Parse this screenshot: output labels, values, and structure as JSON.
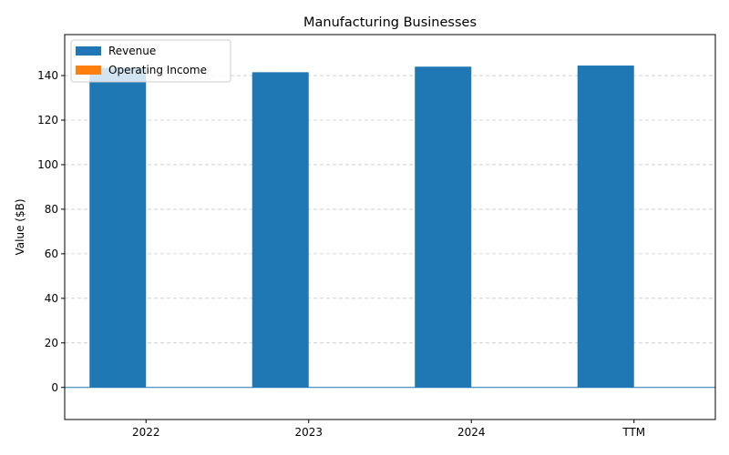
{
  "chart_data": {
    "type": "bar",
    "title": "Manufacturing Businesses",
    "xlabel": "",
    "ylabel": "Value ($B)",
    "categories": [
      "2022",
      "2023",
      "2024",
      "TTM"
    ],
    "series": [
      {
        "name": "Revenue",
        "color": "#1f77b4",
        "values": [
          143.5,
          141.5,
          144.0,
          144.5
        ]
      },
      {
        "name": "Operating Income",
        "color": "#ff7f0e",
        "values": [
          0,
          0,
          0,
          0
        ]
      }
    ],
    "ylim": [
      -14.4,
      158.4
    ],
    "yticks": [
      0,
      20,
      40,
      60,
      80,
      100,
      120,
      140
    ],
    "grid": true,
    "legend_position": "top-left"
  }
}
